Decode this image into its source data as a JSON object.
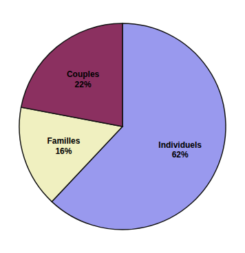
{
  "chart_data": {
    "type": "pie",
    "categories": [
      "Individuels",
      "Familles",
      "Couples"
    ],
    "values": [
      62,
      16,
      22
    ],
    "value_labels": [
      "62%",
      "16%",
      "22%"
    ],
    "colors": [
      "#9999ee",
      "#f0f0c0",
      "#8b3060"
    ],
    "data_labels": true
  }
}
